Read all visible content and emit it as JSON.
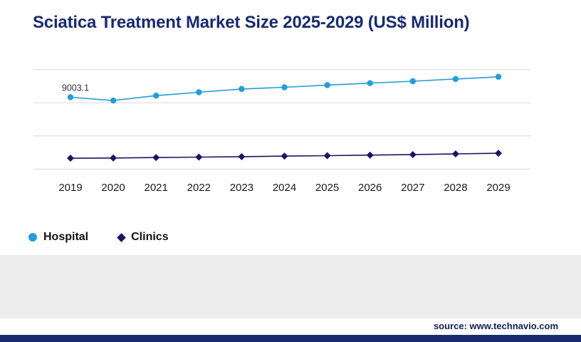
{
  "title": "Sciatica Treatment Market Size 2025-2029 (US$ Million)",
  "source": "source: www.technavio.com",
  "legend": [
    {
      "label": "Hospital",
      "color": "#249dd8",
      "marker": "circle"
    },
    {
      "label": "Clinics",
      "color": "#1b1464",
      "marker": "diamond"
    }
  ],
  "colors": {
    "title": "#1a2b6d",
    "gridline": "#d9d9d9",
    "footer_panel": "#ededed",
    "bottom_bar": "#1a2b6d",
    "source_text": "#101f5c",
    "axis_label": "#1a1a1a",
    "data_label": "#333333"
  },
  "chart_data": {
    "type": "line",
    "title": "Sciatica Treatment Market Size 2025-2029 (US$ Million)",
    "x": [
      "2019",
      "2020",
      "2021",
      "2022",
      "2023",
      "2024",
      "2025",
      "2026",
      "2027",
      "2028",
      "2029"
    ],
    "series": [
      {
        "name": "Hospital",
        "marker": "circle",
        "color": "#249dd8",
        "values": [
          9003.1,
          8700,
          9150,
          9450,
          9750,
          9900,
          10100,
          10280,
          10450,
          10650,
          10850
        ]
      },
      {
        "name": "Clinics",
        "marker": "diamond",
        "color": "#1b1464",
        "values": [
          3480,
          3500,
          3540,
          3580,
          3620,
          3670,
          3710,
          3760,
          3810,
          3870,
          3930
        ]
      }
    ],
    "annotations": [
      {
        "series": "Hospital",
        "x": "2019",
        "text": "9003.1"
      }
    ],
    "xlabel": "",
    "ylabel": "",
    "ylim": [
      2000,
      12000
    ],
    "gridline_values": [
      2500,
      5500,
      8500,
      11500
    ],
    "grid": true,
    "legend_position": "bottom-left"
  }
}
